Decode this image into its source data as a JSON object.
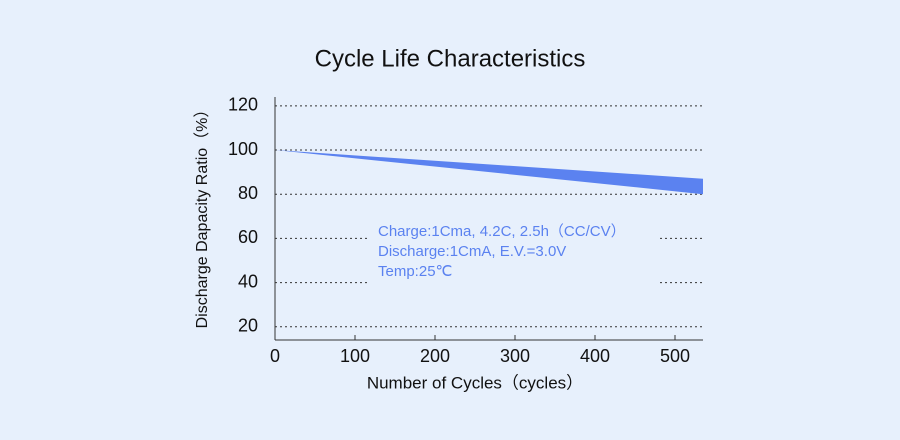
{
  "chart_data": {
    "type": "area",
    "title": "Cycle Life Characteristics",
    "x_label": "Number of Cycles（cycles）",
    "y_label": "Discharge Dapacity Ratio（%）",
    "x": [
      0,
      535
    ],
    "upper": [
      100,
      87
    ],
    "lower": [
      100,
      80
    ],
    "color": "#5b82f0",
    "xlim": [
      0,
      535
    ],
    "xticks": [
      0,
      100,
      200,
      300,
      400,
      500
    ],
    "ylim": [
      14,
      124
    ],
    "yticks": [
      20,
      40,
      60,
      80,
      100,
      120
    ],
    "grid": true,
    "annotations": [
      "Charge:1Cma, 4.2C, 2.5h（CC/CV）",
      "Discharge:1CmA, E.V.=3.0V",
      "Temp:25℃"
    ]
  }
}
